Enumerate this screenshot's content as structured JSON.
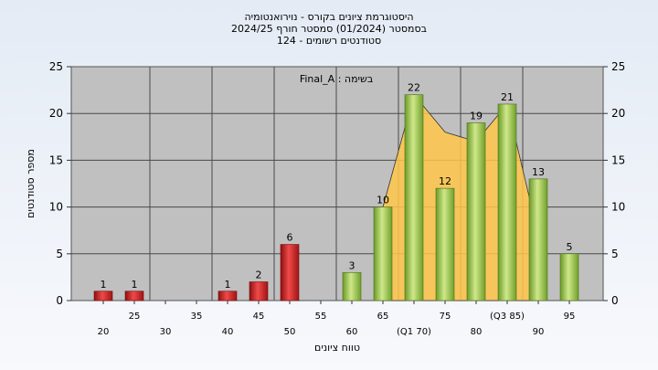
{
  "chart_data": {
    "type": "bar",
    "title_lines": [
      "היסטוגרמת ציונים בקורס - נוירואנטומיה",
      "בסמסטר  (01/2024)  סמסטר חורף 2024/25",
      "סטודנטים רשומים - 124"
    ],
    "annotation": "בשימה : Final_A",
    "xlabel": "טווח ציונים",
    "ylabel": "מספר סטודנטים",
    "ylim": [
      0,
      25
    ],
    "yticks": [
      0,
      5,
      10,
      15,
      20,
      25
    ],
    "grid": true,
    "categories": [
      "20",
      "25",
      "30",
      "35",
      "40",
      "45",
      "50",
      "55",
      "60",
      "65",
      "(Q1 70)",
      "75",
      "80",
      "(Q3 85)",
      "90",
      "95"
    ],
    "values": [
      1,
      1,
      0,
      0,
      1,
      2,
      6,
      0,
      3,
      10,
      22,
      12,
      19,
      21,
      13,
      5
    ],
    "bar_colors": [
      "red",
      "red",
      "red",
      "red",
      "red",
      "red",
      "red",
      "green",
      "green",
      "green",
      "green",
      "green",
      "green",
      "green",
      "green",
      "green"
    ],
    "area_overlay": {
      "x": [
        "65",
        "(Q1 70)",
        "75",
        "80",
        "(Q3 85)",
        "90"
      ],
      "values": [
        10,
        22,
        18,
        17,
        21,
        7
      ]
    },
    "colors": {
      "red": "#cc2020",
      "green": "#8cbf3c",
      "area": "#ffc74a",
      "plot_bg": "#c0c0c0",
      "grid": "#4a4a4a"
    }
  }
}
